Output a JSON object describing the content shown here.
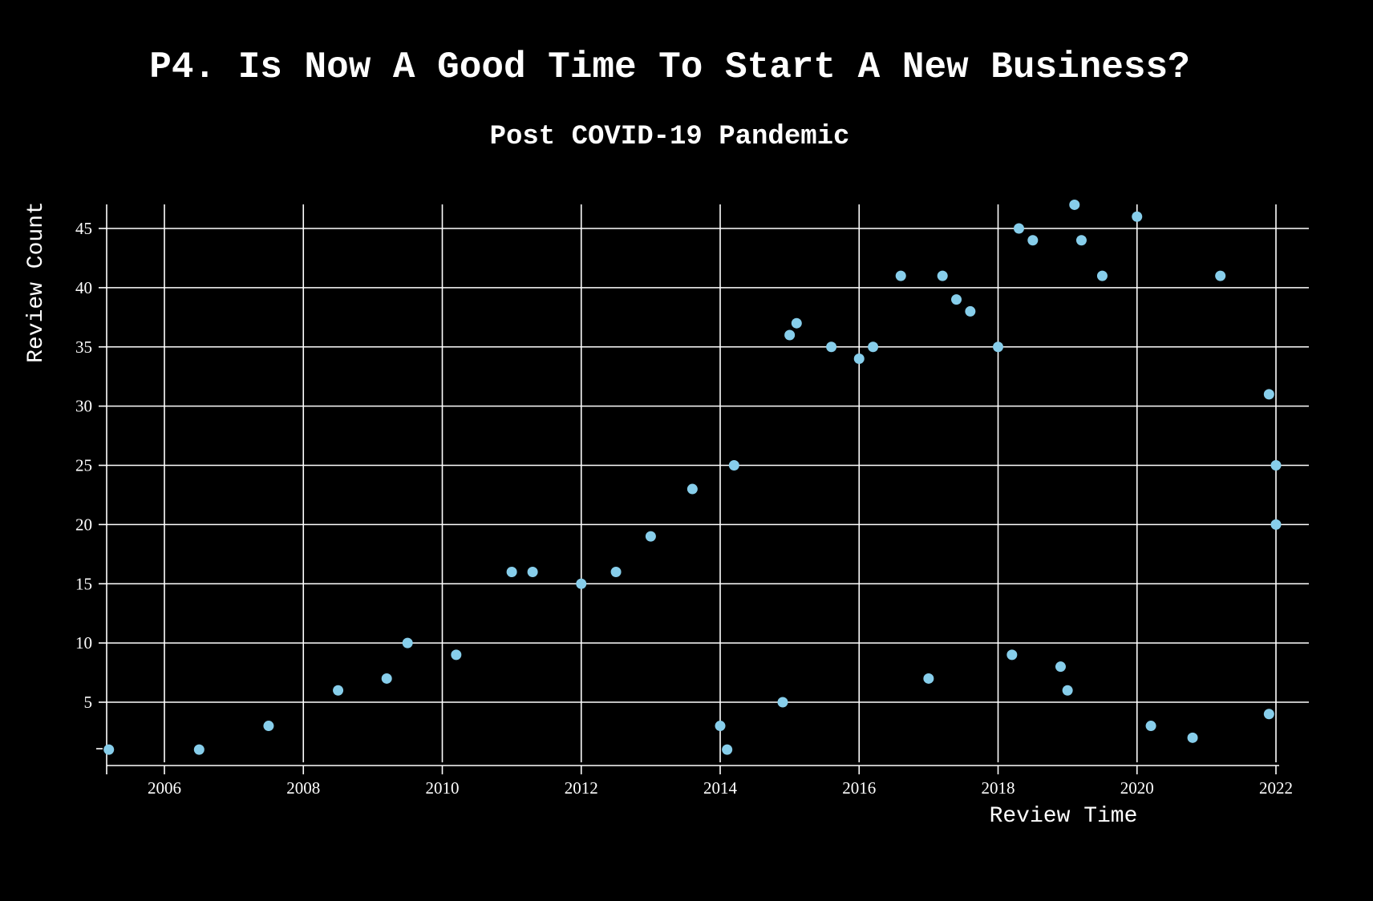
{
  "title": "P4. Is Now A Good Time To Start A New Business?",
  "subtitle": "Post COVID-19 Pandemic",
  "chart_data": {
    "type": "scatter",
    "xlabel": "Review Time",
    "ylabel": "Review Count",
    "xlim": [
      2005.2,
      2022.1
    ],
    "ylim": [
      -1,
      47
    ],
    "x_ticks": [
      "2006",
      "2008",
      "2010",
      "2012",
      "2014",
      "2016",
      "2018",
      "2020",
      "2022"
    ],
    "y_ticks": [
      "5",
      "10",
      "15",
      "20",
      "25",
      "30",
      "35",
      "40",
      "45"
    ],
    "grid": true,
    "point_color": "#87ceeb",
    "series": [
      {
        "values": [
          {
            "x": 2005.2,
            "y": 1
          },
          {
            "x": 2006.5,
            "y": 1
          },
          {
            "x": 2007.5,
            "y": 3
          },
          {
            "x": 2008.5,
            "y": 6
          },
          {
            "x": 2009.2,
            "y": 7
          },
          {
            "x": 2009.5,
            "y": 10
          },
          {
            "x": 2010.2,
            "y": 9
          },
          {
            "x": 2011.0,
            "y": 16
          },
          {
            "x": 2011.3,
            "y": 16
          },
          {
            "x": 2012.0,
            "y": 15
          },
          {
            "x": 2012.5,
            "y": 16
          },
          {
            "x": 2013.0,
            "y": 19
          },
          {
            "x": 2013.6,
            "y": 23
          },
          {
            "x": 2014.0,
            "y": 3
          },
          {
            "x": 2014.1,
            "y": 1
          },
          {
            "x": 2014.2,
            "y": 25
          },
          {
            "x": 2014.9,
            "y": 5
          },
          {
            "x": 2015.0,
            "y": 36
          },
          {
            "x": 2015.1,
            "y": 37
          },
          {
            "x": 2015.6,
            "y": 35
          },
          {
            "x": 2016.0,
            "y": 34
          },
          {
            "x": 2016.2,
            "y": 35
          },
          {
            "x": 2016.6,
            "y": 41
          },
          {
            "x": 2017.0,
            "y": 7
          },
          {
            "x": 2017.2,
            "y": 41
          },
          {
            "x": 2017.4,
            "y": 39
          },
          {
            "x": 2017.6,
            "y": 38
          },
          {
            "x": 2018.0,
            "y": 35
          },
          {
            "x": 2018.3,
            "y": 45
          },
          {
            "x": 2018.5,
            "y": 44
          },
          {
            "x": 2018.2,
            "y": 9
          },
          {
            "x": 2018.9,
            "y": 8
          },
          {
            "x": 2019.0,
            "y": 6
          },
          {
            "x": 2019.1,
            "y": 47
          },
          {
            "x": 2019.2,
            "y": 44
          },
          {
            "x": 2019.5,
            "y": 41
          },
          {
            "x": 2020.0,
            "y": 46
          },
          {
            "x": 2020.2,
            "y": 3
          },
          {
            "x": 2020.8,
            "y": 2
          },
          {
            "x": 2021.2,
            "y": 41
          },
          {
            "x": 2021.9,
            "y": 31
          },
          {
            "x": 2021.9,
            "y": 4
          },
          {
            "x": 2022.0,
            "y": 25
          },
          {
            "x": 2022.0,
            "y": 20
          }
        ]
      }
    ]
  }
}
